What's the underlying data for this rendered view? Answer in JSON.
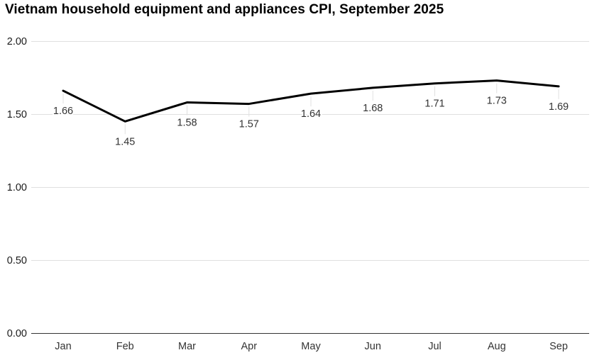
{
  "header": {
    "title": "Vietnam household equipment and appliances CPI, September 2025"
  },
  "chart_data": {
    "type": "line",
    "title": "Vietnam household equipment and appliances CPI, September 2025",
    "categories": [
      "Jan",
      "Feb",
      "Mar",
      "Apr",
      "May",
      "Jun",
      "Jul",
      "Aug",
      "Sep"
    ],
    "values": [
      1.66,
      1.45,
      1.58,
      1.57,
      1.64,
      1.68,
      1.71,
      1.73,
      1.69
    ],
    "data_labels": [
      "1.66",
      "1.45",
      "1.58",
      "1.57",
      "1.64",
      "1.68",
      "1.71",
      "1.73",
      "1.69"
    ],
    "xlabel": "",
    "ylabel": "",
    "ylim": [
      0,
      2.0
    ],
    "y_ticks": [
      0,
      0.5,
      1.0,
      1.5,
      2.0
    ],
    "y_tick_labels": [
      "0.00",
      "0.50",
      "1.00",
      "1.50",
      "2.00"
    ],
    "grid": true,
    "legend_position": "none",
    "colors": {
      "line": "#000000",
      "grid": "#e0e0e0",
      "baseline": "#333333",
      "data_label": "#333333",
      "axis_label": "#1a1a1a",
      "month_label": "#333333",
      "leader_line": "#e0e0e0",
      "background": "#ffffff"
    }
  }
}
